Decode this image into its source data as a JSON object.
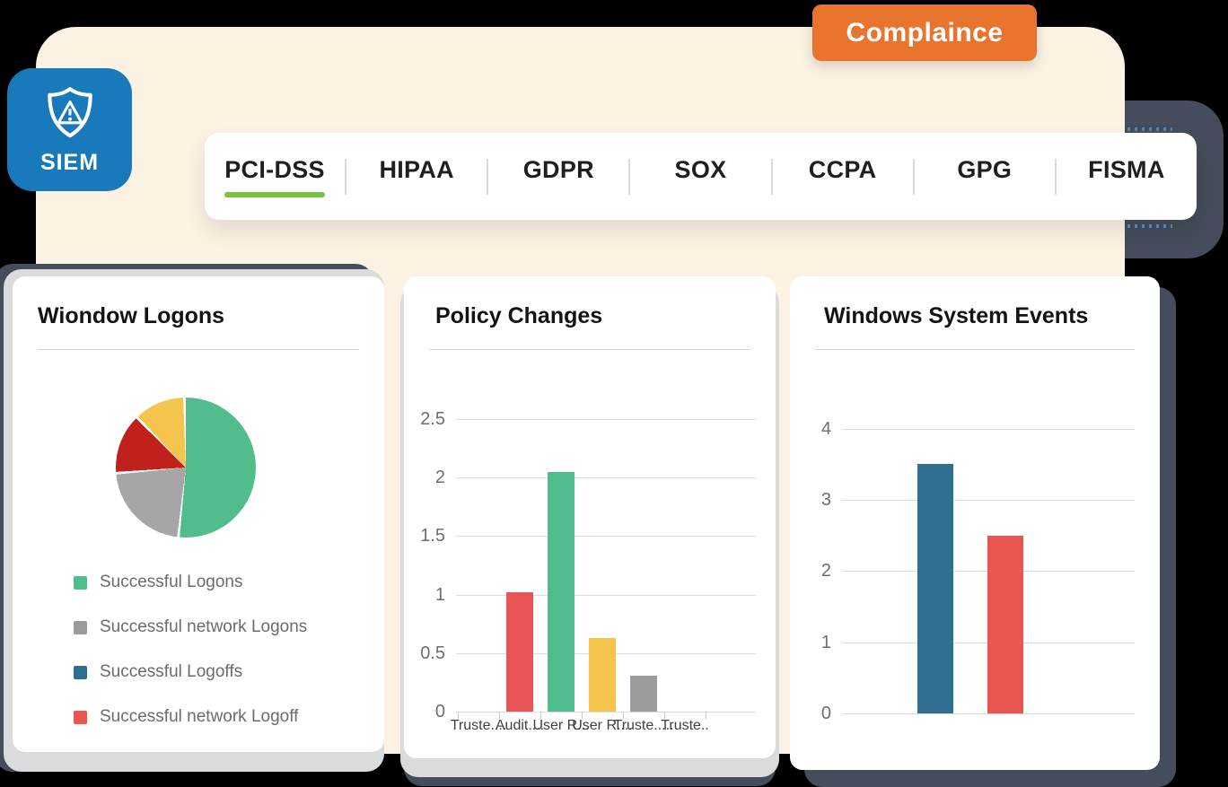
{
  "badge": {
    "label": "Complaince",
    "bg": "#E8742E",
    "text_color": "#FFFFFF"
  },
  "brand": {
    "label": "SIEM",
    "icon": "shield-alert-icon",
    "bg": "#1879BB"
  },
  "tab_bar": {
    "active_color": "#7CC143",
    "tabs": [
      {
        "label": "PCI-DSS",
        "active": true
      },
      {
        "label": "HIPAA",
        "active": false
      },
      {
        "label": "GDPR",
        "active": false
      },
      {
        "label": "SOX",
        "active": false
      },
      {
        "label": "CCPA",
        "active": false
      },
      {
        "label": "GPG",
        "active": false
      },
      {
        "label": "FISMA",
        "active": false
      }
    ]
  },
  "chart_data": [
    {
      "type": "pie",
      "title": "Wiondow Logons",
      "slices": [
        {
          "label": "Successful Logons",
          "value": 52,
          "color": "#52BD8C"
        },
        {
          "label": "Successful network Logons",
          "value": 22,
          "color": "#A6A6A6"
        },
        {
          "label": "Successful network Logoff",
          "value": 14,
          "color": "#C1211D"
        },
        {
          "label": "Successful Logoffs",
          "value": 12,
          "color": "#F5C44C"
        }
      ],
      "legend": [
        {
          "label": "Successful Logons",
          "color": "#52BD8C"
        },
        {
          "label": "Successful network Logons",
          "color": "#9B9B9B"
        },
        {
          "label": "Successful Logoffs",
          "color": "#2F6F8F"
        },
        {
          "label": "Successful network Logoff",
          "color": "#E9564F"
        }
      ],
      "legend_position": "bottom"
    },
    {
      "type": "bar",
      "title": "Policy Changes",
      "categories": [
        "Truste....",
        "Audit....",
        "User R...",
        "User R....",
        "Truste.....",
        "Truste.."
      ],
      "values": [
        0,
        1.02,
        2.05,
        0.63,
        0.31,
        0
      ],
      "bar_colors": [
        "#E95456",
        "#E95456",
        "#52BD8C",
        "#F5C44C",
        "#9C9C9C",
        "#9C9C9C"
      ],
      "yticks": [
        0,
        0.5,
        1,
        1.5,
        2,
        2.5
      ],
      "ylim": [
        0,
        2.5
      ],
      "grid": true,
      "legend_position": "none"
    },
    {
      "type": "bar",
      "title": "Windows System Events",
      "categories": [
        "",
        ""
      ],
      "values": [
        3.5,
        2.5
      ],
      "bar_colors": [
        "#2F6F8F",
        "#E9564F"
      ],
      "yticks": [
        0,
        1,
        2,
        3,
        4
      ],
      "ylim": [
        0,
        4
      ],
      "grid": true,
      "legend_position": "none"
    }
  ]
}
